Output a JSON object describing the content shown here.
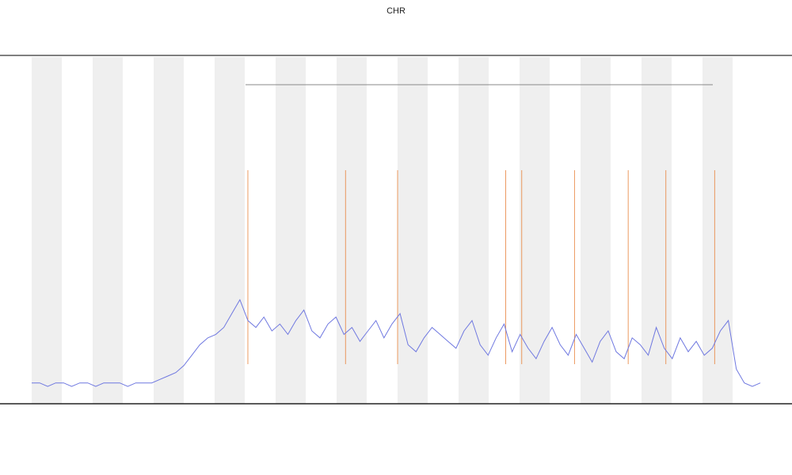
{
  "chart_data": {
    "type": "line",
    "title": "CHR",
    "x": [
      0,
      1,
      2,
      3,
      4,
      5,
      6,
      7,
      8,
      9,
      10,
      11,
      12,
      13,
      14,
      15,
      16,
      17,
      18,
      19,
      20,
      21,
      22,
      23,
      24,
      25,
      26,
      27,
      28,
      29,
      30,
      31,
      32,
      33,
      34,
      35,
      36,
      37,
      38,
      39,
      40,
      41,
      42,
      43,
      44,
      45,
      46,
      47,
      48,
      49,
      50,
      51,
      52,
      53,
      54,
      55,
      56,
      57,
      58,
      59,
      60,
      61,
      62,
      63,
      64,
      65,
      66,
      67,
      68,
      69,
      70,
      71,
      72,
      73,
      74,
      75,
      76,
      77,
      78,
      79,
      80,
      81,
      82,
      83,
      84,
      85,
      86,
      87,
      88,
      89,
      90,
      91
    ],
    "values": [
      6,
      6,
      5,
      6,
      6,
      5,
      6,
      6,
      5,
      6,
      6,
      6,
      5,
      6,
      6,
      6,
      7,
      8,
      9,
      11,
      14,
      17,
      19,
      20,
      22,
      26,
      30,
      24,
      22,
      25,
      21,
      23,
      20,
      24,
      27,
      21,
      19,
      23,
      25,
      20,
      22,
      18,
      21,
      24,
      19,
      23,
      26,
      17,
      15,
      19,
      22,
      20,
      18,
      16,
      21,
      24,
      17,
      14,
      19,
      23,
      15,
      20,
      16,
      13,
      18,
      22,
      17,
      14,
      20,
      16,
      12,
      18,
      21,
      15,
      13,
      19,
      17,
      14,
      22,
      16,
      13,
      19,
      15,
      18,
      14,
      16,
      21,
      24,
      10,
      6,
      5,
      6
    ],
    "color": "#6f78e0",
    "markers": {
      "x": [
        27,
        39.2,
        45.7,
        59.2,
        61.2,
        67.8,
        74.5,
        79.2,
        85.3
      ],
      "color": "#e8823a"
    },
    "xlim": [
      0,
      91
    ],
    "ylim": [
      0,
      100
    ]
  }
}
